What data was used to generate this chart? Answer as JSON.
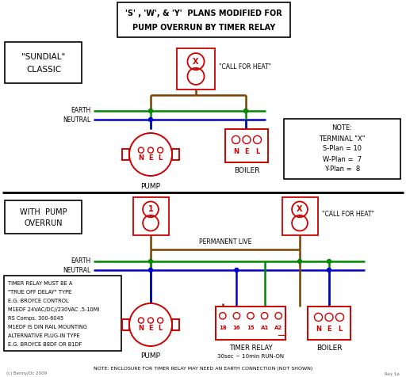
{
  "bg_color": "#ffffff",
  "red": "#cc0000",
  "green": "#008800",
  "blue": "#0000cc",
  "brown": "#7B3F00",
  "black": "#000000",
  "gray": "#666666",
  "title_line1": "'S' , 'W', & 'Y'  PLANS MODIFIED FOR",
  "title_line2": "PUMP OVERRUN BY TIMER RELAY",
  "sundial_line1": "\"SUNDIAL\"",
  "sundial_line2": "CLASSIC",
  "call_for_heat": "\"CALL FOR HEAT\"",
  "earth_label": "EARTH",
  "neutral_label": "NEUTRAL",
  "pump_label": "PUMP",
  "boiler_label": "BOILER",
  "note_title": "NOTE:",
  "note_line1": "TERMINAL \"X\"",
  "note_line2": "S-Plan = 10",
  "note_line3": "W-Plan =  7",
  "note_line4": "Y-Plan =  8",
  "with_pump_line1": "WITH  PUMP",
  "with_pump_line2": "OVERRUN",
  "perm_live": "PERMANENT LIVE",
  "timer_label": "TIMER RELAY",
  "timer_sub": "30sec ~ 10min RUN-ON",
  "timer_note": "NOTE: ENCLOSURE FOR TIMER RELAY MAY NEED AN EARTH CONNECTION (NOT SHOWN)",
  "timer_info": [
    "TIMER RELAY MUST BE A",
    "\"TRUE OFF DELAY\" TYPE",
    "E.G. BROYCE CONTROL",
    "M1EDF 24VAC/DC//230VAC .5-10MI",
    "RS Comps. 300-6045",
    "M1EDF IS DIN RAIL MOUNTING",
    "ALTERNATIVE PLUG-IN TYPE",
    "E.G. BROYCE B8DF OR B1DF"
  ],
  "watermark": "(c) Benny/Dc 2009",
  "rev": "Rev 1a"
}
